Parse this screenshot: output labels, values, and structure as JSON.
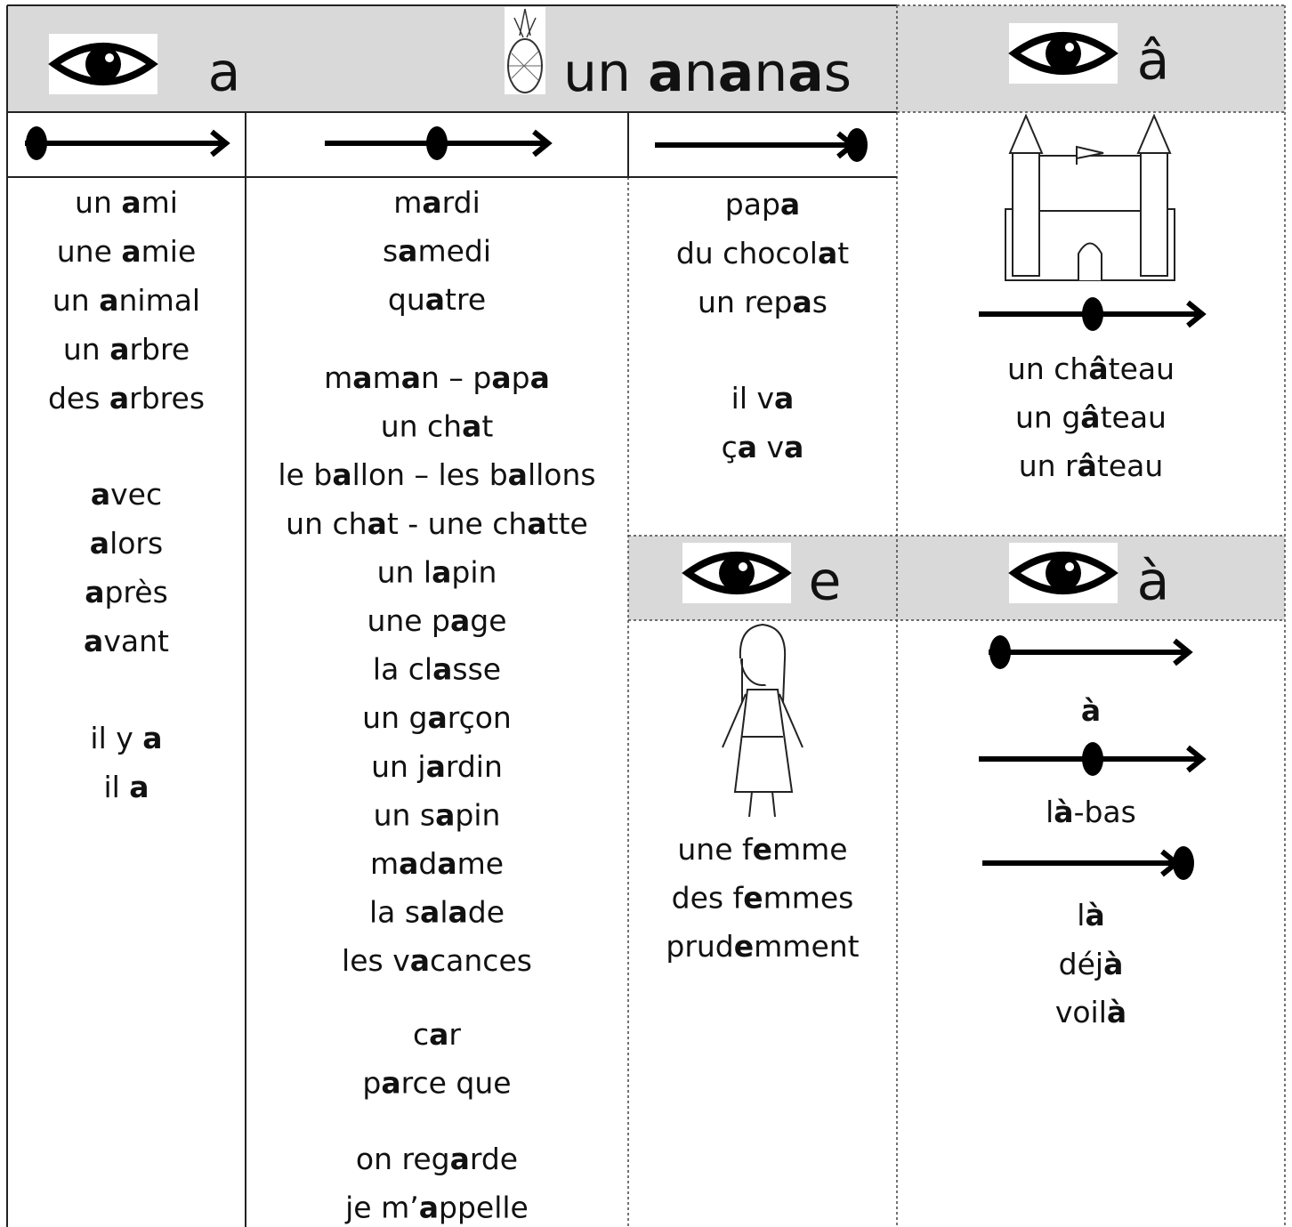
{
  "header": {
    "letter": "a",
    "word": [
      "un ",
      {
        "b": "a"
      },
      "n",
      {
        "b": "a"
      },
      "n",
      {
        "b": "a"
      },
      "s"
    ],
    "circ": "â"
  },
  "columns": [
    {
      "groups": [
        [
          [
            "un ",
            {
              "b": "a"
            },
            "mi"
          ],
          [
            "une ",
            {
              "b": "a"
            },
            "mie"
          ],
          [
            "un ",
            {
              "b": "a"
            },
            "nimal"
          ],
          [
            "un ",
            {
              "b": "a"
            },
            "rbre"
          ],
          [
            "des ",
            {
              "b": "a"
            },
            "rbres"
          ]
        ],
        [
          [
            {
              "b": "a"
            },
            "vec"
          ],
          [
            {
              "b": "a"
            },
            "lors"
          ],
          [
            {
              "b": "a"
            },
            "près"
          ],
          [
            {
              "b": "a"
            },
            "vant"
          ]
        ],
        [
          [
            "il y ",
            {
              "b": "a"
            }
          ],
          [
            "il ",
            {
              "b": "a"
            }
          ]
        ]
      ]
    },
    {
      "groups": [
        [
          [
            "m",
            {
              "b": "a"
            },
            "rdi"
          ],
          [
            "s",
            {
              "b": "a"
            },
            "medi"
          ],
          [
            "qu",
            {
              "b": "a"
            },
            "tre"
          ]
        ],
        [
          [
            "m",
            {
              "b": "a"
            },
            "m",
            {
              "b": "a"
            },
            "n – p",
            {
              "b": "a"
            },
            "p",
            {
              "b": "a"
            }
          ],
          [
            "un ch",
            {
              "b": "a"
            },
            "t"
          ],
          [
            "le b",
            {
              "b": "a"
            },
            "llon – les b",
            {
              "b": "a"
            },
            "llons"
          ],
          [
            "un ch",
            {
              "b": "a"
            },
            "t -  une ch",
            {
              "b": "a"
            },
            "tte"
          ],
          [
            "un l",
            {
              "b": "a"
            },
            "pin"
          ],
          [
            "une p",
            {
              "b": "a"
            },
            "ge"
          ],
          [
            "la cl",
            {
              "b": "a"
            },
            "sse"
          ],
          [
            "un g",
            {
              "b": "a"
            },
            "rçon"
          ],
          [
            "un j",
            {
              "b": "a"
            },
            "rdin"
          ],
          [
            "un s",
            {
              "b": "a"
            },
            "pin"
          ],
          [
            "m",
            {
              "b": "a"
            },
            "d",
            {
              "b": "a"
            },
            "me"
          ],
          [
            "la s",
            {
              "b": "a"
            },
            "l",
            {
              "b": "a"
            },
            "de"
          ],
          [
            "les v",
            {
              "b": "a"
            },
            "cances"
          ]
        ],
        [
          [
            "c",
            {
              "b": "a"
            },
            "r"
          ],
          [
            "p",
            {
              "b": "a"
            },
            "rce que"
          ]
        ],
        [
          [
            "on reg",
            {
              "b": "a"
            },
            "rde"
          ],
          [
            "je m’",
            {
              "b": "a"
            },
            "ppelle"
          ]
        ]
      ]
    },
    {
      "groups": [
        [
          [
            "pap",
            {
              "b": "a"
            }
          ],
          [
            "du chocol",
            {
              "b": "a"
            },
            "t"
          ],
          [
            "un rep",
            {
              "b": "a"
            },
            "s"
          ]
        ],
        [
          [
            "il v",
            {
              "b": "a"
            }
          ],
          [
            "ç",
            {
              "b": "a"
            },
            " v",
            {
              "b": "a"
            }
          ]
        ]
      ]
    }
  ],
  "circ_words": [
    [
      "un ch",
      {
        "b": "â"
      },
      "teau"
    ],
    [
      "un g",
      {
        "b": "â"
      },
      "teau"
    ],
    [
      "un r",
      {
        "b": "â"
      },
      "teau"
    ]
  ],
  "e": {
    "letter": "e",
    "words": [
      [
        "une f",
        {
          "b": "e"
        },
        "mme"
      ],
      [
        "des f",
        {
          "b": "e"
        },
        "mmes"
      ],
      [
        "prud",
        {
          "b": "e"
        },
        "mment"
      ]
    ]
  },
  "grave": {
    "letter": "à",
    "words": [
      [
        {
          "b": "à"
        }
      ],
      [
        "l",
        {
          "b": "à"
        },
        "-bas"
      ],
      [
        "l",
        {
          "b": "à"
        }
      ],
      [
        "déj",
        {
          "b": "à"
        }
      ],
      [
        "voil",
        {
          "b": "à"
        }
      ]
    ]
  }
}
